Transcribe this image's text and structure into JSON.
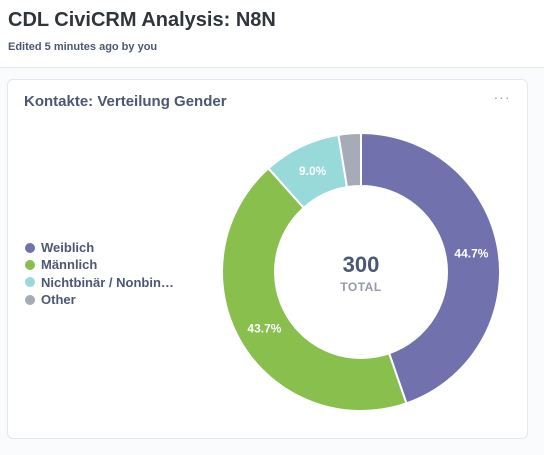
{
  "header": {
    "title": "CDL CiviCRM Analysis: N8N",
    "subtitle": "Edited 5 minutes ago by you"
  },
  "card": {
    "title": "Kontakte: Verteilung Gender",
    "menu_icon": "ellipsis-icon",
    "menu_glyph": "···"
  },
  "chart_data": {
    "type": "pie",
    "donut": true,
    "title": "Kontakte: Verteilung Gender",
    "categories": [
      "Weiblich",
      "Männlich",
      "Nichtbinär / Nonbin…",
      "Other"
    ],
    "values": [
      44.7,
      43.7,
      9.0,
      2.6
    ],
    "value_unit": "percent",
    "slice_labels": [
      "44.7%",
      "43.7%",
      "9.0%",
      ""
    ],
    "colors": [
      "#7172ad",
      "#88bf4d",
      "#98d9d9",
      "#a7aab7"
    ],
    "total": "300",
    "total_label": "TOTAL",
    "legend_position": "left"
  }
}
